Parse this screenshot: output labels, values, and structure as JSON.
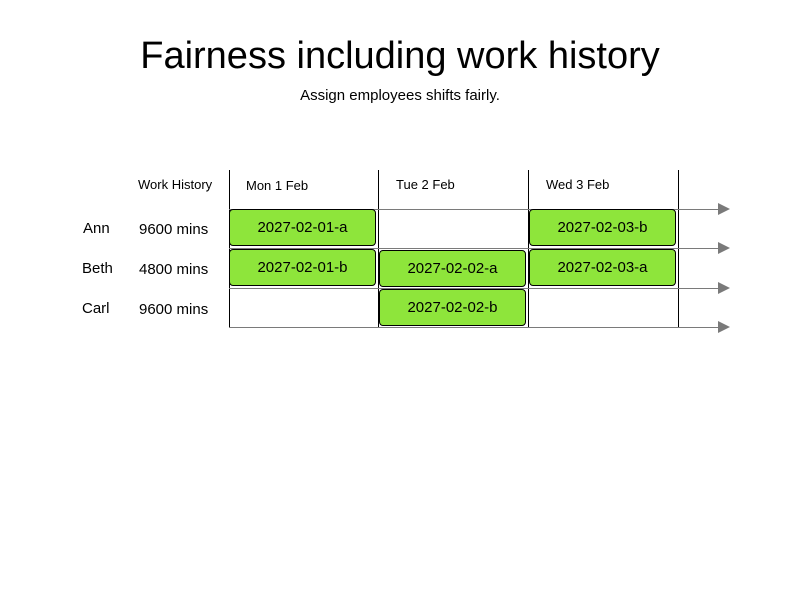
{
  "title": "Fairness including work history",
  "subtitle": "Assign employees shifts fairly.",
  "work_history_header": "Work History",
  "days": [
    "Mon 1 Feb",
    "Tue 2 Feb",
    "Wed 3 Feb"
  ],
  "employees": [
    {
      "name": "Ann",
      "work_history": "9600 mins"
    },
    {
      "name": "Beth",
      "work_history": "4800 mins"
    },
    {
      "name": "Carl",
      "work_history": "9600 mins"
    }
  ],
  "shifts": [
    {
      "employee": "Ann",
      "day": "Mon 1 Feb",
      "label": "2027-02-01-a"
    },
    {
      "employee": "Ann",
      "day": "Wed 3 Feb",
      "label": "2027-02-03-b"
    },
    {
      "employee": "Beth",
      "day": "Mon 1 Feb",
      "label": "2027-02-01-b"
    },
    {
      "employee": "Beth",
      "day": "Tue 2 Feb",
      "label": "2027-02-02-a"
    },
    {
      "employee": "Beth",
      "day": "Wed 3 Feb",
      "label": "2027-02-03-a"
    },
    {
      "employee": "Carl",
      "day": "Tue 2 Feb",
      "label": "2027-02-02-b"
    }
  ],
  "colors": {
    "shift_fill": "#8ee53b",
    "timeline_line": "#7a7a7a",
    "day_divider": "#000000"
  }
}
